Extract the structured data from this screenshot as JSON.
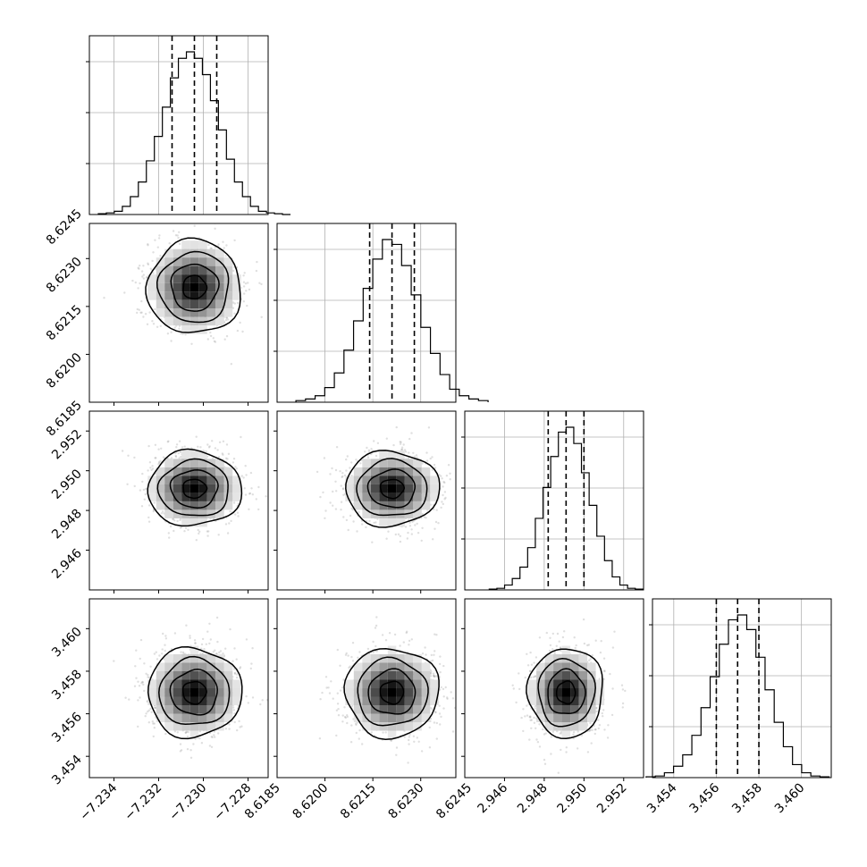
{
  "chart_data": {
    "type": "corner",
    "grid": true,
    "parameters": [
      {
        "mean": -7.2304,
        "quantile_16": -7.2314,
        "quantile_50": -7.2304,
        "quantile_84": -7.2294,
        "range": [
          -7.2351,
          -7.2271
        ],
        "ticks": [
          -7.234,
          -7.232,
          -7.23,
          -7.228
        ],
        "tick_labels": [
          "−7.234",
          "−7.232",
          "−7.230",
          "−7.228"
        ]
      },
      {
        "mean": 8.6221,
        "quantile_16": 8.6214,
        "quantile_50": 8.6221,
        "quantile_84": 8.6228,
        "range": [
          8.6185,
          8.6241
        ],
        "ticks": [
          8.6185,
          8.62,
          8.6215,
          8.623,
          8.6245
        ],
        "tick_labels": [
          "8.6185",
          "8.6200",
          "8.6215",
          "8.6230",
          "8.6245"
        ]
      },
      {
        "mean": 2.9491,
        "quantile_16": 2.9482,
        "quantile_50": 2.9491,
        "quantile_84": 2.95,
        "range": [
          2.944,
          2.953
        ],
        "ticks": [
          2.946,
          2.948,
          2.95,
          2.952
        ],
        "tick_labels": [
          "2.946",
          "2.948",
          "2.950",
          "2.952"
        ]
      },
      {
        "mean": 3.457,
        "quantile_16": 3.456,
        "quantile_50": 3.457,
        "quantile_84": 3.458,
        "range": [
          3.453,
          3.4614
        ],
        "ticks": [
          3.454,
          3.456,
          3.458,
          3.46
        ],
        "tick_labels": [
          "3.454",
          "3.456",
          "3.458",
          "3.460"
        ]
      }
    ],
    "histograms": [
      [
        0.005,
        0.01,
        0.02,
        0.05,
        0.11,
        0.2,
        0.33,
        0.48,
        0.66,
        0.84,
        0.96,
        1.0,
        0.96,
        0.86,
        0.7,
        0.52,
        0.34,
        0.2,
        0.11,
        0.05,
        0.02,
        0.01,
        0.005,
        0.0
      ],
      [
        0.01,
        0.02,
        0.04,
        0.09,
        0.18,
        0.32,
        0.5,
        0.7,
        0.88,
        1.0,
        0.97,
        0.84,
        0.66,
        0.46,
        0.3,
        0.17,
        0.08,
        0.04,
        0.02,
        0.01
      ],
      [
        0.005,
        0.01,
        0.03,
        0.07,
        0.14,
        0.26,
        0.44,
        0.63,
        0.82,
        0.97,
        1.0,
        0.9,
        0.72,
        0.52,
        0.33,
        0.18,
        0.08,
        0.03,
        0.01,
        0.005
      ],
      [
        0.005,
        0.01,
        0.03,
        0.07,
        0.14,
        0.26,
        0.43,
        0.62,
        0.82,
        0.97,
        1.0,
        0.91,
        0.74,
        0.54,
        0.34,
        0.19,
        0.08,
        0.03,
        0.01,
        0.005
      ]
    ],
    "contour_levels_sigma": [
      0.5,
      1.0,
      1.5,
      2.0
    ],
    "quantiles": [
      0.16,
      0.5,
      0.84
    ]
  }
}
